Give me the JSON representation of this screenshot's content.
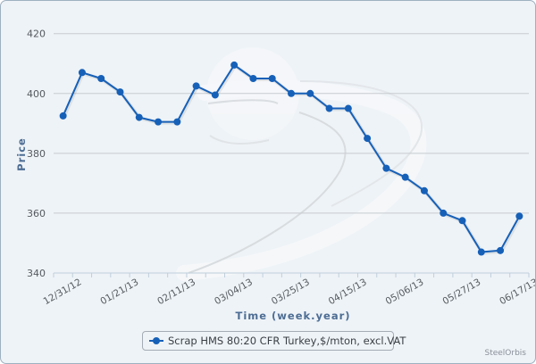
{
  "chart_data": {
    "type": "line",
    "title": "",
    "xlabel": "Time (week.year)",
    "ylabel": "Price",
    "ylim": [
      340,
      420
    ],
    "yticks": [
      340,
      360,
      380,
      400,
      420
    ],
    "grid": true,
    "legend_position": "bottom-center",
    "x_tick_labels": [
      "12/31/12",
      "01/21/13",
      "02/11/13",
      "03/04/13",
      "03/25/13",
      "04/15/13",
      "05/06/13",
      "05/27/13",
      "06/17/13"
    ],
    "x": [
      "12/24/12",
      "12/31/12",
      "01/07/13",
      "01/14/13",
      "01/21/13",
      "01/28/13",
      "02/04/13",
      "02/11/13",
      "02/18/13",
      "02/25/13",
      "03/04/13",
      "03/11/13",
      "03/18/13",
      "03/25/13",
      "04/01/13",
      "04/08/13",
      "04/15/13",
      "04/22/13",
      "04/29/13",
      "05/06/13",
      "05/13/13",
      "05/20/13",
      "05/27/13",
      "06/03/13",
      "06/10/13"
    ],
    "series": [
      {
        "name": "Scrap HMS 80:20 CFR Turkey,$/mton, excl.VAT",
        "color": "#1660b8",
        "values": [
          392.5,
          407,
          405,
          400.5,
          392,
          390.5,
          390.5,
          402.5,
          399.5,
          409.5,
          405,
          405,
          400,
          400,
          395,
          395,
          385,
          375,
          372,
          367.5,
          360,
          357.5,
          347,
          347.5,
          359
        ]
      }
    ]
  },
  "legend": {
    "label": "Scrap HMS 80:20 CFR Turkey,$/mton, excl.VAT"
  },
  "axes": {
    "x_title": "Time (week.year)",
    "y_title": "Price"
  },
  "credit": "SteelOrbis",
  "colors": {
    "series": "#1660b8",
    "background": "#eef3f7",
    "axis_title": "#4d6d94",
    "grid": "#c8ccd0"
  }
}
